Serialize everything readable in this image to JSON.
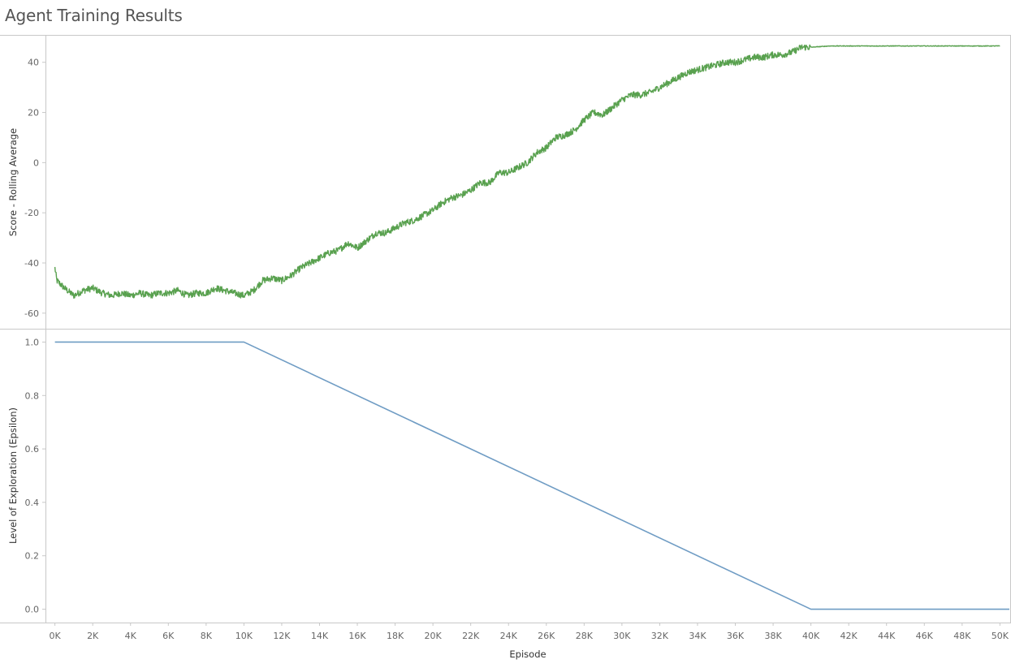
{
  "title": "Agent Training Results",
  "colors": {
    "score_line": "#59a14f",
    "epsilon_line": "#6f9cc4",
    "axis": "#c8c8c8",
    "tick_text": "#666666"
  },
  "chart_data": [
    {
      "type": "line",
      "ylabel": "Score - Rolling Average",
      "xlim": [
        -500,
        50500
      ],
      "ylim": [
        -62,
        48
      ],
      "yticks": [
        40,
        20,
        0,
        -20,
        -40,
        -60
      ],
      "grid": false,
      "series": [
        {
          "x": [
            0,
            100,
            500,
            1000,
            1500,
            2000,
            2500,
            3000,
            3500,
            4000,
            4500,
            5000,
            5500,
            6000,
            6500,
            7000,
            7500,
            8000,
            8500,
            9000,
            9500,
            10000,
            10500,
            11000,
            11500,
            12000,
            12500,
            13000,
            13500,
            14000,
            14500,
            15000,
            15500,
            16000,
            16500,
            17000,
            17500,
            18000,
            18500,
            19000,
            19500,
            20000,
            20500,
            21000,
            21500,
            22000,
            22500,
            23000,
            23500,
            24000,
            24500,
            25000,
            25500,
            26000,
            26500,
            27000,
            27500,
            28000,
            28500,
            29000,
            29500,
            30000,
            30500,
            31000,
            31500,
            32000,
            32500,
            33000,
            33500,
            34000,
            34500,
            35000,
            35500,
            36000,
            36500,
            37000,
            37500,
            38000,
            38500,
            39000,
            39500,
            40000,
            41000,
            42000,
            44000,
            46000,
            48000,
            50000
          ],
          "y": [
            -42,
            -47,
            -50,
            -53,
            -51,
            -50,
            -52,
            -53,
            -52,
            -53,
            -52,
            -53,
            -52,
            -52,
            -51,
            -53,
            -52,
            -52,
            -50,
            -51,
            -52,
            -53,
            -51,
            -47,
            -46,
            -47,
            -45,
            -42,
            -40,
            -38,
            -36,
            -35,
            -32,
            -34,
            -31,
            -28,
            -28,
            -26,
            -24,
            -23,
            -21,
            -19,
            -16,
            -14,
            -13,
            -11,
            -8,
            -8,
            -4,
            -4,
            -2,
            0,
            4,
            6,
            10,
            11,
            13,
            17,
            20,
            19,
            22,
            25,
            27,
            27,
            28,
            30,
            32,
            34,
            36,
            37,
            38,
            39,
            40,
            40,
            41,
            42,
            42,
            43,
            43,
            44,
            46,
            46,
            46.5,
            46.5,
            46.5,
            46.5,
            46.5,
            46.5
          ]
        }
      ]
    },
    {
      "type": "line",
      "ylabel": "Level of Exploration (Epsilon)",
      "xlabel": "Episode",
      "xlim": [
        -500,
        50500
      ],
      "ylim": [
        -0.05,
        1.05
      ],
      "yticks": [
        1.0,
        0.8,
        0.6,
        0.4,
        0.2,
        0.0
      ],
      "xticks": [
        "0K",
        "2K",
        "4K",
        "6K",
        "8K",
        "10K",
        "12K",
        "14K",
        "16K",
        "18K",
        "20K",
        "22K",
        "24K",
        "26K",
        "28K",
        "30K",
        "32K",
        "34K",
        "36K",
        "38K",
        "40K",
        "42K",
        "44K",
        "46K",
        "48K",
        "50K"
      ],
      "grid": false,
      "series": [
        {
          "x": [
            0,
            10000,
            40000,
            50500
          ],
          "y": [
            1.0,
            1.0,
            0.0,
            0.0
          ]
        }
      ]
    }
  ]
}
